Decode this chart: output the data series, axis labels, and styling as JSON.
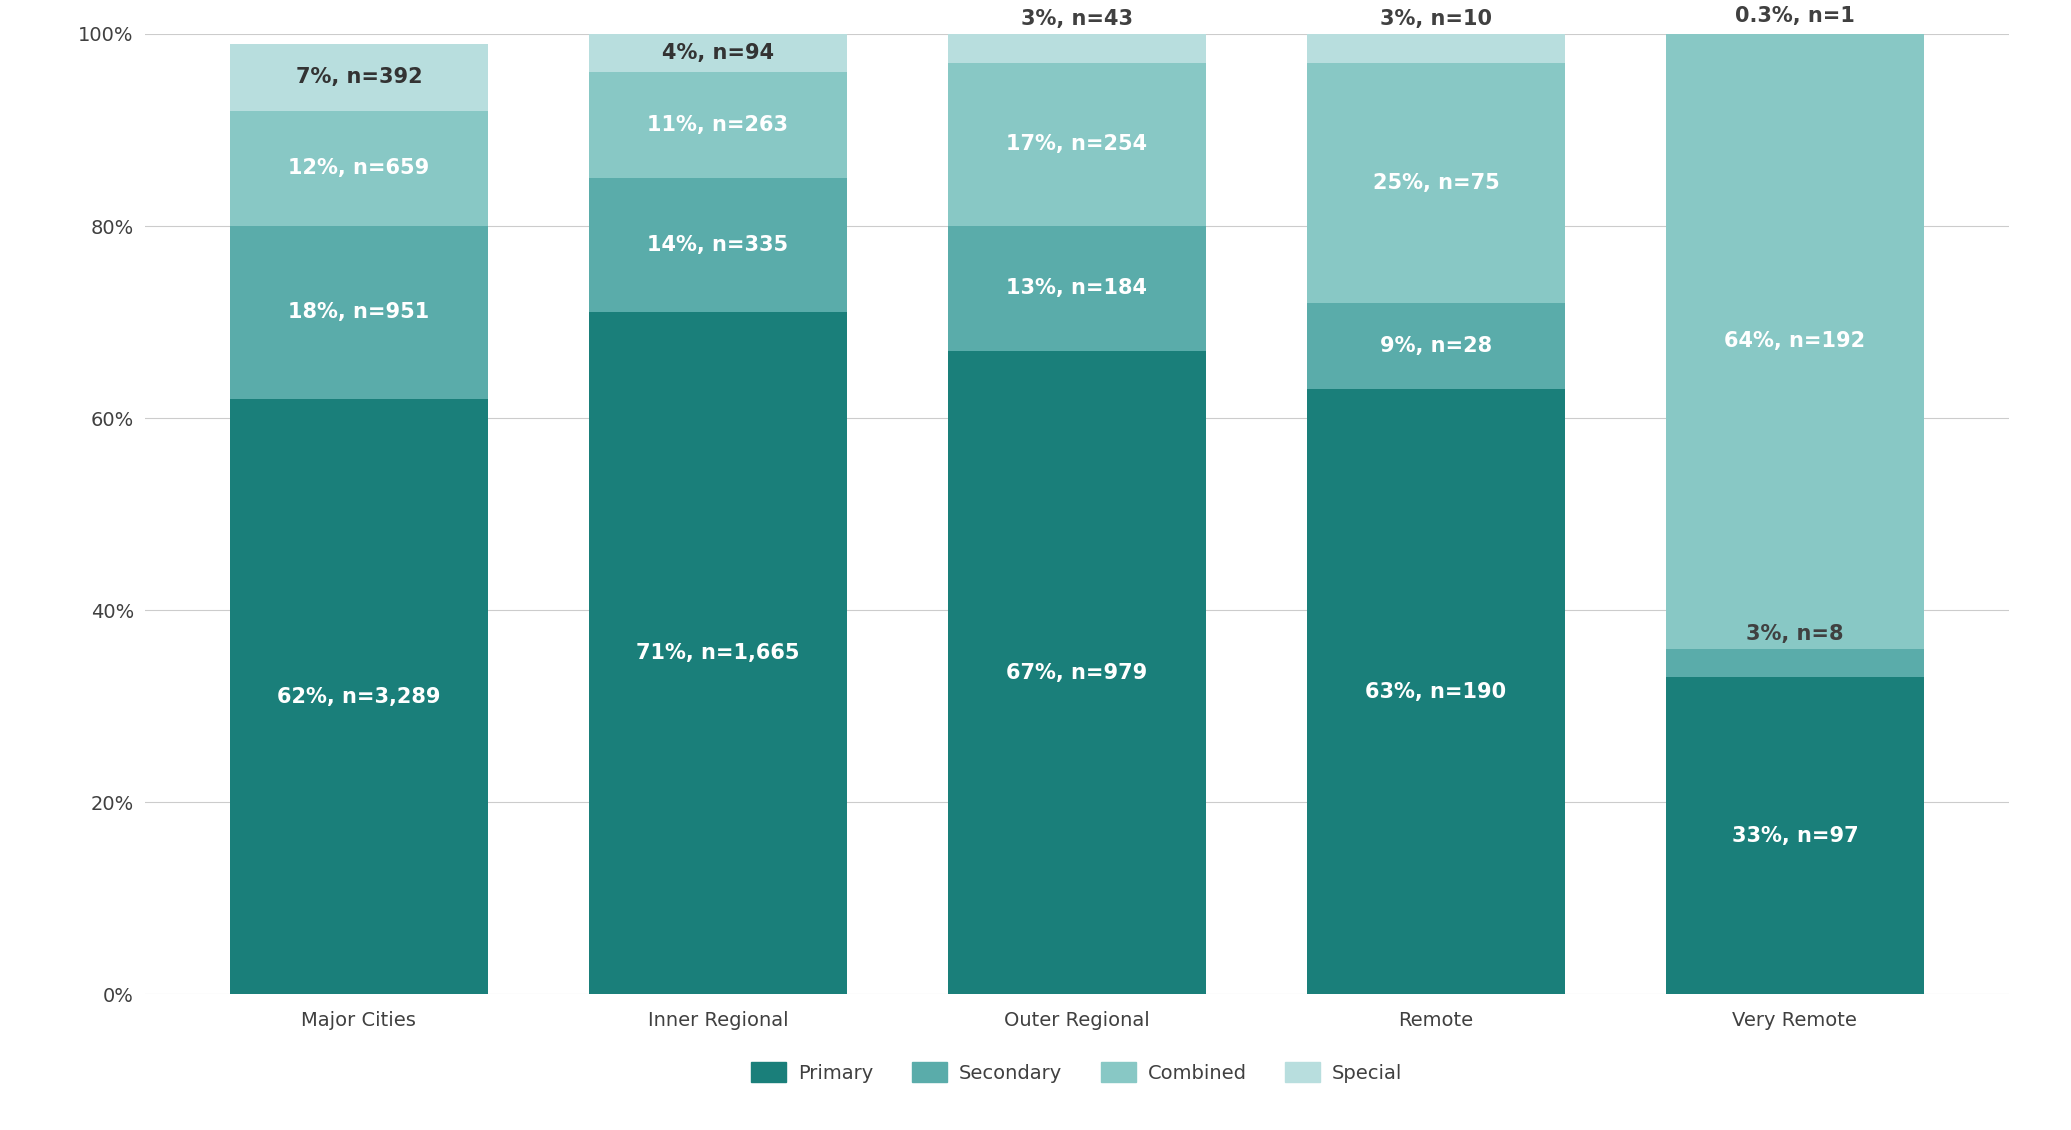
{
  "categories": [
    "Major Cities",
    "Inner Regional",
    "Outer Regional",
    "Remote",
    "Very Remote"
  ],
  "series": {
    "Primary": {
      "values": [
        62,
        71,
        67,
        63,
        33
      ],
      "counts": [
        "3,289",
        "1,665",
        "979",
        "190",
        "97"
      ],
      "color": "#1a7f7a"
    },
    "Secondary": {
      "values": [
        18,
        14,
        13,
        9,
        3
      ],
      "counts": [
        "951",
        "335",
        "184",
        "28",
        "8"
      ],
      "color": "#5aacaa"
    },
    "Combined": {
      "values": [
        12,
        11,
        17,
        25,
        64
      ],
      "counts": [
        "659",
        "263",
        "254",
        "75",
        "192"
      ],
      "color": "#88c8c5"
    },
    "Special": {
      "values": [
        7,
        4,
        3,
        3,
        0.3
      ],
      "counts": [
        "392",
        "94",
        "43",
        "10",
        "1"
      ],
      "color": "#b8dede"
    }
  },
  "series_order": [
    "Primary",
    "Secondary",
    "Combined",
    "Special"
  ],
  "bar_width": 0.72,
  "ylim": [
    0,
    100
  ],
  "yticks": [
    0,
    20,
    40,
    60,
    80,
    100
  ],
  "ytick_labels": [
    "0%",
    "20%",
    "40%",
    "60%",
    "80%",
    "100%"
  ],
  "background_color": "#ffffff",
  "grid_color": "#cccccc",
  "text_color_dark": "#404040",
  "legend_labels": [
    "Primary",
    "Secondary",
    "Combined",
    "Special"
  ],
  "legend_colors": [
    "#1a7f7a",
    "#5aacaa",
    "#88c8c5",
    "#b8dede"
  ],
  "label_fontsize": 15,
  "axis_fontsize": 14
}
